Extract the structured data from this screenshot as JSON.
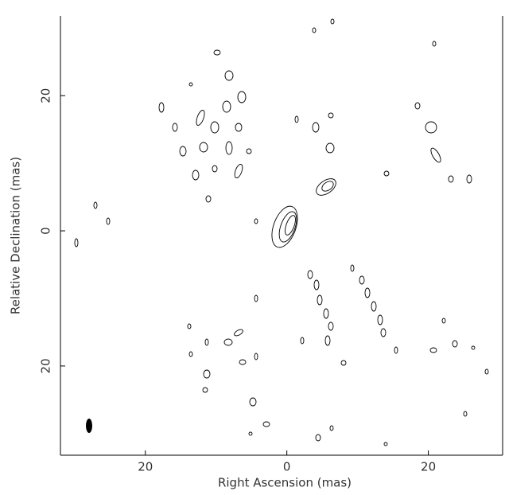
{
  "chart_data": {
    "type": "contour",
    "xlabel": "Right Ascension  (mas)",
    "ylabel": "Relative Declination  (mas)",
    "xlim": [
      32,
      -30.5
    ],
    "xticks": [
      20,
      0,
      {
        "value": -20,
        "label": "20"
      }
    ],
    "ylim": [
      -33.2,
      31.8
    ],
    "yticks": [
      20,
      0,
      {
        "value": -20,
        "label": "20"
      }
    ],
    "color": "#000000"
  }
}
